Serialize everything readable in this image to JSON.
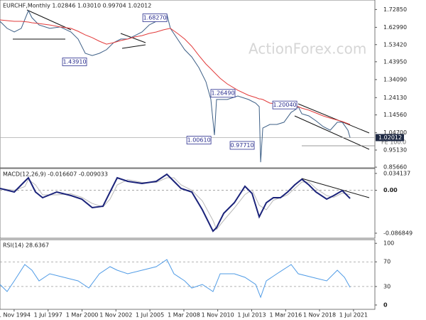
{
  "chart_data": [
    {
      "type": "line",
      "title": "EURCHF,Monthly 1.02846 1.03010 0.99704 1.02012",
      "watermark": "ActionForex.com",
      "x": [
        1993.72,
        1994.28,
        1994.84,
        1995.39,
        1995.95,
        1996.23,
        1996.79,
        1997.63,
        1998.46,
        1999.3,
        1999.86,
        2000.42,
        2000.97,
        2001.53,
        2002.09,
        2002.65,
        2003.21,
        2003.76,
        2004.32,
        2004.88,
        2005.44,
        2006.0,
        2006.55,
        2006.83,
        2007.11,
        2007.67,
        2008.23,
        2008.79,
        2009.35,
        2009.9,
        2010.29,
        2010.57,
        2010.74,
        2011.02,
        2011.58,
        2012.41,
        2013.25,
        2013.81,
        2014.09,
        2014.2,
        2014.37,
        2014.93,
        2015.48,
        2016.04,
        2016.6,
        2016.88,
        2017.16,
        2017.44,
        2017.99,
        2018.55,
        2019.11,
        2019.67,
        2020.23,
        2020.62,
        2021.06,
        2021.23
      ],
      "series": [
        {
          "name": "EURCHF",
          "color": "#3d5f86",
          "values": [
            1.663,
            1.624,
            1.604,
            1.624,
            1.722,
            1.683,
            1.643,
            1.624,
            1.632,
            1.604,
            1.565,
            1.486,
            1.474,
            1.486,
            1.506,
            1.545,
            1.565,
            1.565,
            1.584,
            1.604,
            1.643,
            1.663,
            1.683,
            1.702,
            1.624,
            1.565,
            1.506,
            1.466,
            1.407,
            1.329,
            1.231,
            1.034,
            1.231,
            1.231,
            1.231,
            1.25,
            1.231,
            1.211,
            1.191,
            0.884,
            1.073,
            1.093,
            1.093,
            1.105,
            1.16,
            1.172,
            1.191,
            1.152,
            1.14,
            1.113,
            1.081,
            1.061,
            1.105,
            1.105,
            1.061,
            1.02
          ]
        },
        {
          "name": "MA",
          "color": "#e23b3b",
          "values": [
            1.671,
            1.667,
            1.663,
            1.663,
            1.659,
            1.655,
            1.651,
            1.643,
            1.632,
            1.624,
            1.608,
            1.588,
            1.573,
            1.553,
            1.537,
            1.545,
            1.557,
            1.565,
            1.577,
            1.584,
            1.596,
            1.604,
            1.616,
            1.62,
            1.624,
            1.596,
            1.565,
            1.525,
            1.474,
            1.427,
            1.4,
            1.38,
            1.368,
            1.348,
            1.317,
            1.282,
            1.254,
            1.242,
            1.234,
            1.234,
            1.231,
            1.211,
            1.207,
            1.203,
            1.195,
            1.191,
            1.191,
            1.183,
            1.172,
            1.156,
            1.14,
            1.128,
            1.117,
            1.109,
            1.097,
            1.093
          ]
        }
      ],
      "last_price": {
        "value": 1.02012,
        "label": "1.02012"
      },
      "annotations": [
        {
          "label": "1.68270",
          "value": 1.6827,
          "x": 2005.89
        },
        {
          "label": "1.43910",
          "value": 1.4391,
          "x": 1999.58
        },
        {
          "label": "1.26490",
          "value": 1.2649,
          "x": 2011.24
        },
        {
          "label": "1.20040",
          "value": 1.2004,
          "x": 2016.1
        },
        {
          "label": "1.00610",
          "value": 1.0061,
          "x": 2009.35
        },
        {
          "label": "0.97710",
          "value": 0.9771,
          "x": 2012.75
        }
      ],
      "fe_label": "FE 100.0",
      "xlim": [
        1993.72,
        2023.18
      ],
      "ylim": [
        0.853,
        1.781
      ],
      "yticks": [
        {
          "value": 1.7285,
          "label": "1.72850"
        },
        {
          "value": 1.6299,
          "label": "1.62990"
        },
        {
          "value": 1.5342,
          "label": "1.53420"
        },
        {
          "value": 1.4395,
          "label": "1.43950"
        },
        {
          "value": 1.3409,
          "label": "1.34090"
        },
        {
          "value": 1.2413,
          "label": "1.24130"
        },
        {
          "value": 1.1456,
          "label": "1.14560"
        },
        {
          "value": 1.047,
          "label": "1.04700"
        },
        {
          "value": 0.9513,
          "label": "0.95130"
        },
        {
          "value": 0.8566,
          "label": "0.85660"
        }
      ]
    },
    {
      "type": "line",
      "title": "MACD(12,26,9) -0.016607 -0.009033",
      "x": [
        1993.72,
        1994.84,
        1995.67,
        1995.95,
        1996.51,
        1997.07,
        1998.18,
        1999.3,
        2000.14,
        2000.97,
        2001.81,
        2002.37,
        2002.93,
        2003.76,
        2004.88,
        2006.0,
        2006.83,
        2007.39,
        2007.95,
        2008.79,
        2009.62,
        2010.46,
        2010.74,
        2011.3,
        2012.14,
        2012.97,
        2013.53,
        2014.09,
        2014.65,
        2015.2,
        2015.76,
        2016.32,
        2016.88,
        2017.44,
        2017.99,
        2018.55,
        2019.39,
        2019.95,
        2020.62,
        2021.23
      ],
      "series": [
        {
          "name": "Signal",
          "color": "#b9b9b9",
          "values": [
            0.0037,
            0.0001,
            0.0073,
            0.0217,
            0.0109,
            -0.0093,
            -0.0093,
            -0.0071,
            -0.0143,
            -0.0266,
            -0.0338,
            -0.0179,
            0.0109,
            0.0217,
            0.016,
            0.016,
            0.0253,
            0.0253,
            0.0109,
            0.0001,
            -0.0215,
            -0.0611,
            -0.0791,
            -0.0611,
            -0.0359,
            -0.0086,
            0.0008,
            -0.0302,
            -0.0395,
            -0.0201,
            -0.015,
            -0.0093,
            0.0037,
            0.0167,
            0.0167,
            0.0037,
            -0.0107,
            -0.0143,
            -0.0057,
            -0.009
          ]
        },
        {
          "name": "MACD",
          "color": "#1b237a",
          "values": [
            0.0037,
            -0.0035,
            0.0181,
            0.0253,
            -0.0035,
            -0.015,
            -0.0035,
            -0.0107,
            -0.0179,
            -0.0352,
            -0.0323,
            -0.0035,
            0.0253,
            0.0181,
            0.0138,
            0.0181,
            0.0325,
            0.0181,
            0.0037,
            -0.0035,
            -0.0395,
            -0.0827,
            -0.0755,
            -0.0467,
            -0.0251,
            0.008,
            -0.0064,
            -0.0539,
            -0.0251,
            -0.015,
            -0.015,
            -0.0035,
            0.0109,
            0.0224,
            0.0109,
            -0.0035,
            -0.0179,
            -0.0107,
            -0.0006,
            -0.0166
          ]
        }
      ],
      "levels": [
        0
      ],
      "xlim": [
        1993.72,
        2023.18
      ],
      "ylim": [
        -0.097,
        0.044
      ],
      "yticks": [
        0.034137,
        {
          "value": 0,
          "label": "0.00"
        },
        -0.086849
      ]
    },
    {
      "type": "line",
      "title": "RSI(14) 28.6367",
      "x": [
        1993.72,
        1994.28,
        1994.84,
        1995.67,
        1996.23,
        1996.79,
        1997.63,
        1998.74,
        1999.86,
        2000.7,
        2001.53,
        2002.37,
        2002.93,
        2003.76,
        2004.88,
        2006.0,
        2006.83,
        2007.39,
        2008.23,
        2008.79,
        2009.62,
        2010.46,
        2011.02,
        2012.14,
        2012.97,
        2013.81,
        2014.2,
        2014.65,
        2015.48,
        2016.6,
        2017.16,
        2018.27,
        2019.39,
        2020.23,
        2020.79,
        2021.23
      ],
      "series": [
        {
          "name": "RSI",
          "color": "#4f9be6",
          "values": [
            33.4,
            21.8,
            39.1,
            65.6,
            56.4,
            39.1,
            50.7,
            44.9,
            39.1,
            27.6,
            50.7,
            62.2,
            56.4,
            50.7,
            56.4,
            62.2,
            73.7,
            50.7,
            39.1,
            27.6,
            33.4,
            21.8,
            50.7,
            50.7,
            44.9,
            33.4,
            12.6,
            39.1,
            50.7,
            65.6,
            50.7,
            44.9,
            39.1,
            56.4,
            44.9,
            28.6
          ]
        }
      ],
      "levels": [
        70,
        30
      ],
      "xlim": [
        1993.72,
        2023.18
      ],
      "ylim": [
        -7,
        106
      ],
      "yticks": [
        100,
        70,
        30,
        0
      ],
      "xticks": [
        {
          "value": 1994.83,
          "label": "1 Nov 1994"
        },
        {
          "value": 1997.5,
          "label": "1 Jul 1997"
        },
        {
          "value": 2000.17,
          "label": "1 Mar 2000"
        },
        {
          "value": 2002.83,
          "label": "1 Nov 2002"
        },
        {
          "value": 2005.5,
          "label": "1 Jul 2005"
        },
        {
          "value": 2008.17,
          "label": "1 Mar 2008"
        },
        {
          "value": 2010.83,
          "label": "1 Nov 2010"
        },
        {
          "value": 2013.5,
          "label": "1 Jul 2013"
        },
        {
          "value": 2016.17,
          "label": "1 Mar 2016"
        },
        {
          "value": 2018.83,
          "label": "1 Nov 2018"
        },
        {
          "value": 2021.5,
          "label": "1 Jul 2021"
        }
      ]
    }
  ]
}
